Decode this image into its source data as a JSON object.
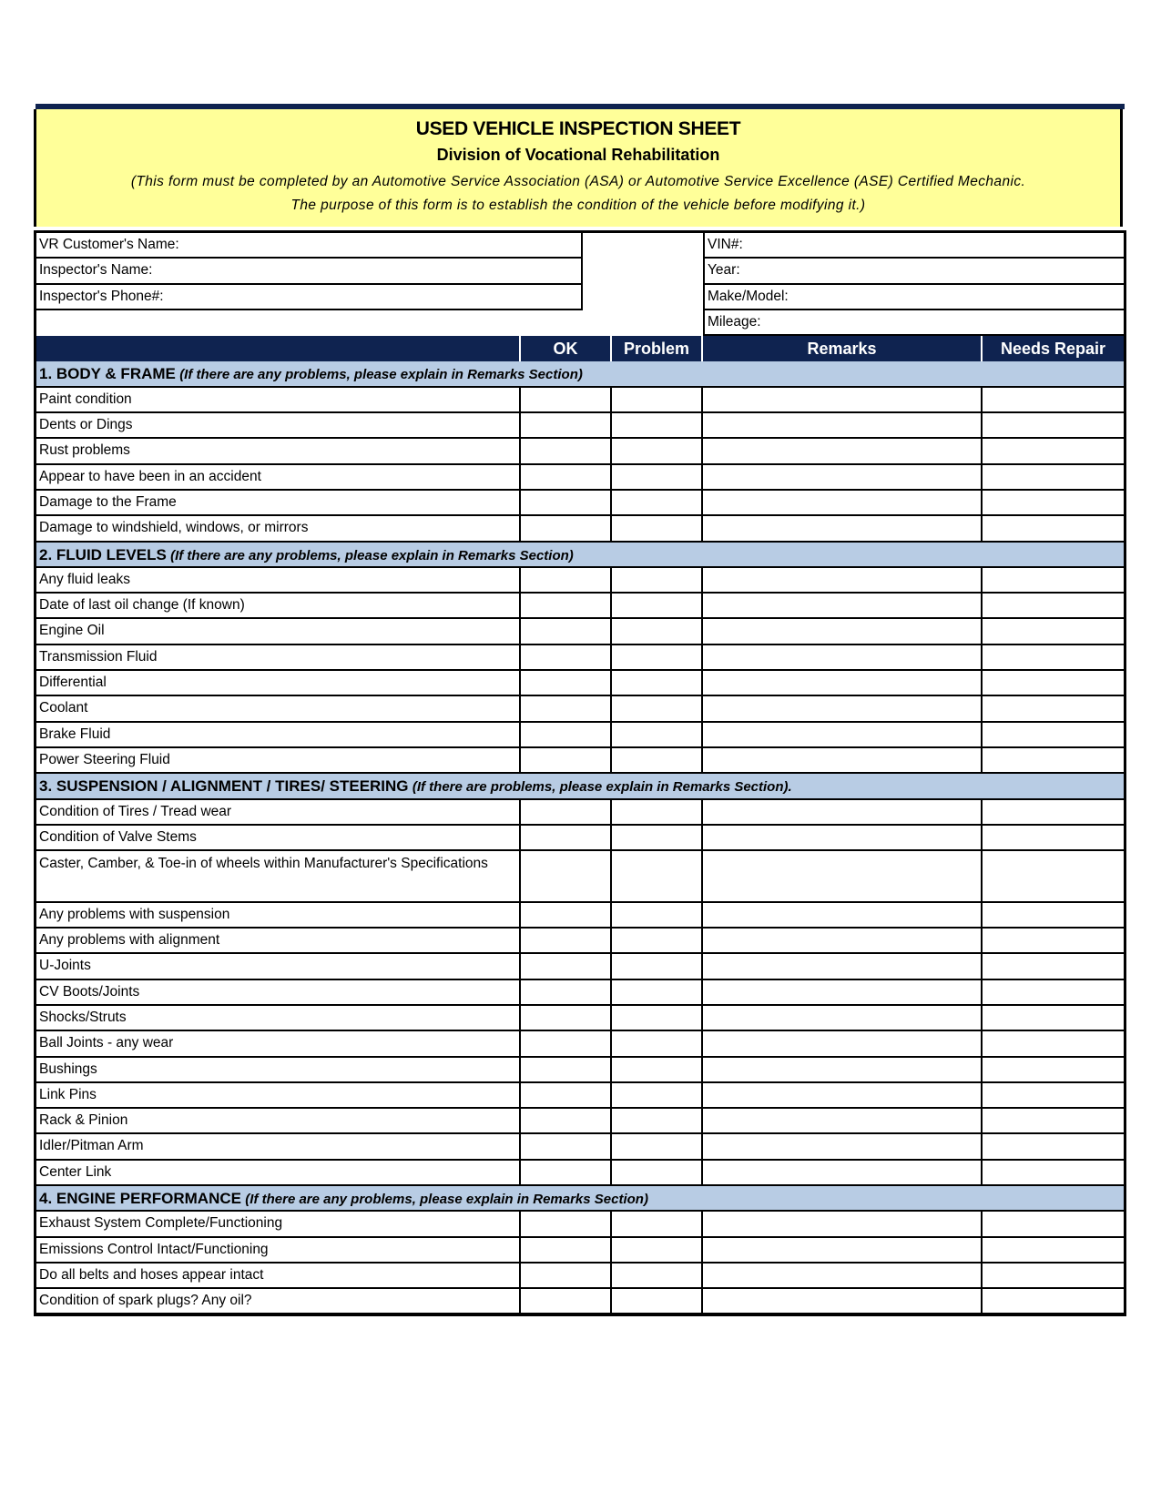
{
  "header": {
    "title": "USED VEHICLE INSPECTION SHEET",
    "subtitle": "Division of Vocational  Rehabilitation",
    "note_line1": "(This form must be completed by an Automotive Service Association (ASA) or Automotive Service Excellence (ASE) Certified Mechanic.",
    "note_line2": "The purpose of this form is to establish the condition of the vehicle before modifying   it.)"
  },
  "info": {
    "left": [
      "VR Customer's Name:",
      "Inspector's Name:",
      "Inspector's Phone#:",
      ""
    ],
    "right": [
      "VIN#:",
      "Year:",
      "Make/Model:",
      "Mileage:"
    ]
  },
  "columns": [
    "",
    "OK",
    "Problem",
    "Remarks",
    "Needs Repair"
  ],
  "colors": {
    "navy": "#0f2350",
    "section_blue": "#b8cce4",
    "header_yellow": "#ffff99"
  },
  "sections": [
    {
      "title": "1. BODY & FRAME",
      "note": "(If there are any problems, please explain in Remarks Section)",
      "items": [
        "Paint condition",
        "Dents or  Dings",
        "Rust problems",
        "Appear to have been in an  accident",
        "Damage to the  Frame",
        "Damage to windshield, windows, or  mirrors"
      ]
    },
    {
      "title": "2.  FLUID LEVELS",
      "note": "(If there are any problems, please explain in Remarks Section)",
      "items": [
        "Any fluid leaks",
        "Date of last oil change (If  known)",
        "Engine Oil",
        "Transmission  Fluid",
        "Differential",
        "Coolant",
        "Brake  Fluid",
        "Power Steering  Fluid"
      ]
    },
    {
      "title": "3.  SUSPENSION / ALIGNMENT / TIRES/ STEERING",
      "note": "(If there are problems, please explain in Remarks Section).",
      "items": [
        "Condition of Tires / Tread  wear",
        "Condition of Valve  Stems",
        "Caster, Camber, & Toe-in of wheels within Manufacturer's Specifications",
        "Any problems with  suspension",
        "Any problems with  alignment",
        "U-Joints",
        "CV  Boots/Joints",
        "Shocks/Struts",
        "Ball Joints - any  wear",
        "Bushings",
        "Link  Pins",
        "Rack &  Pinion",
        "Idler/Pitman  Arm",
        "Center  Link"
      ]
    },
    {
      "title": "4.  ENGINE PERFORMANCE",
      "note": "(If there are any problems, please explain in Remarks Section)",
      "items": [
        "Exhaust System  Complete/Functioning",
        "Emissions Control  Intact/Functioning",
        "Do all belts and hoses appear  intact",
        "Condition of spark plugs? Any  oil?"
      ]
    }
  ]
}
